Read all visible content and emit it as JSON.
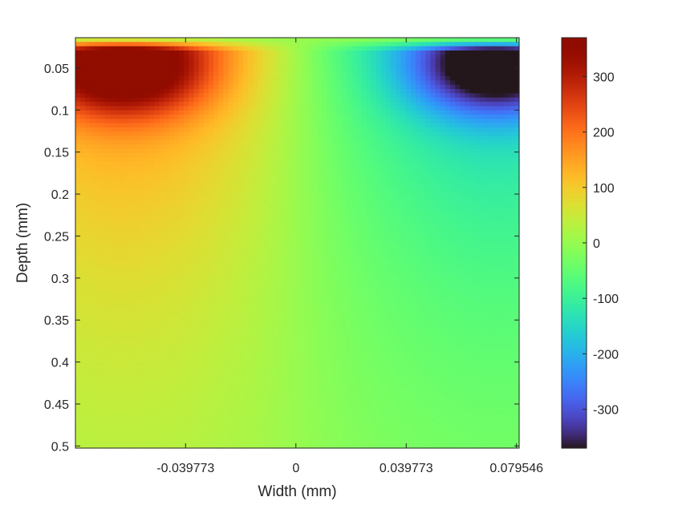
{
  "chart_data": {
    "type": "heatmap",
    "xlabel": "Width (mm)",
    "ylabel": "Depth (mm)",
    "x_range": [
      -0.0795,
      0.0805
    ],
    "y_range": [
      0.0138,
      0.5025
    ],
    "y_reversed": true,
    "x_ticks": [
      {
        "value": -0.039773,
        "label": "-0.039773"
      },
      {
        "value": 0,
        "label": "0"
      },
      {
        "value": 0.039773,
        "label": "0.039773"
      },
      {
        "value": 0.079546,
        "label": "0.079546"
      }
    ],
    "y_ticks": [
      {
        "value": 0.05,
        "label": "0.05"
      },
      {
        "value": 0.1,
        "label": "0.1"
      },
      {
        "value": 0.15,
        "label": "0.15"
      },
      {
        "value": 0.2,
        "label": "0.2"
      },
      {
        "value": 0.25,
        "label": "0.25"
      },
      {
        "value": 0.3,
        "label": "0.3"
      },
      {
        "value": 0.35,
        "label": "0.35"
      },
      {
        "value": 0.4,
        "label": "0.4"
      },
      {
        "value": 0.45,
        "label": "0.45"
      },
      {
        "value": 0.5,
        "label": "0.5"
      }
    ],
    "colorbar": {
      "range": [
        -370,
        370
      ],
      "colormap": "turbo",
      "ticks": [
        {
          "value": 300,
          "label": "300"
        },
        {
          "value": 200,
          "label": "200"
        },
        {
          "value": 100,
          "label": "100"
        },
        {
          "value": 0,
          "label": "0"
        },
        {
          "value": -100,
          "label": "-100"
        },
        {
          "value": -200,
          "label": "-200"
        },
        {
          "value": -300,
          "label": "-300"
        }
      ]
    },
    "grid": false,
    "field_shape": "antisymmetric about x=0; maximum +370 near x=-0.062, depth=0.05; minimum -370 near x=0.072, depth=0.05; magnitude decaying with depth to about ±30 at depth 0.5",
    "extremes": [
      {
        "x": -0.062,
        "y": 0.05,
        "value": 370
      },
      {
        "x": 0.072,
        "y": 0.05,
        "value": -370
      }
    ]
  }
}
